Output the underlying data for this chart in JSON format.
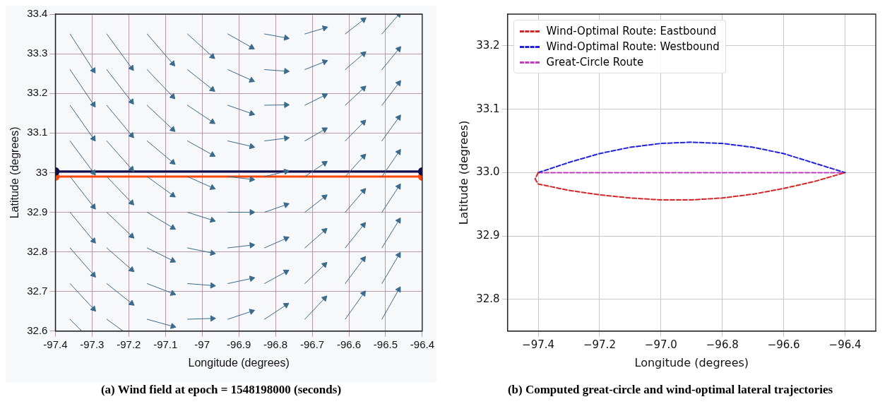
{
  "chart_data": [
    {
      "type": "line",
      "title": "(a) Wind field at epoch = 1548198000 (seconds)",
      "xlabel": "Longitude (degrees)",
      "ylabel": "Latitude (degrees)",
      "xlim": [
        -97.4,
        -96.4
      ],
      "ylim": [
        32.6,
        33.4
      ],
      "xticks": [
        -97.4,
        -97.3,
        -97.2,
        -97.1,
        -97,
        -96.9,
        -96.8,
        -96.7,
        -96.6,
        -96.5,
        -96.4
      ],
      "yticks": [
        32.6,
        32.7,
        32.8,
        32.9,
        33,
        33.1,
        33.2,
        33.3,
        33.4
      ],
      "grid": true,
      "series": [
        {
          "x": [
            -97.36,
            -97.296
          ],
          "values": [
            33.35,
            33.258
          ],
          "color": "#3a6a8c",
          "marker": "triangle"
        },
        {
          "x": [
            -97.36,
            -97.296
          ],
          "values": [
            33.26,
            33.172
          ],
          "color": "#3a6a8c",
          "marker": "triangle"
        },
        {
          "x": [
            -97.36,
            -97.296
          ],
          "values": [
            33.17,
            33.086
          ],
          "color": "#3a6a8c",
          "marker": "triangle"
        },
        {
          "x": [
            -97.36,
            -97.296
          ],
          "values": [
            33.08,
            33.0
          ],
          "color": "#3a6a8c",
          "marker": "triangle"
        },
        {
          "x": [
            -97.36,
            -97.296
          ],
          "values": [
            32.99,
            32.914
          ],
          "color": "#3a6a8c",
          "marker": "triangle"
        },
        {
          "x": [
            -97.36,
            -97.296
          ],
          "values": [
            32.9,
            32.828
          ],
          "color": "#3a6a8c",
          "marker": "triangle"
        },
        {
          "x": [
            -97.36,
            -97.296
          ],
          "values": [
            32.81,
            32.742
          ],
          "color": "#3a6a8c",
          "marker": "triangle"
        },
        {
          "x": [
            -97.36,
            -97.296
          ],
          "values": [
            32.72,
            32.656
          ],
          "color": "#3a6a8c",
          "marker": "triangle"
        },
        {
          "x": [
            -97.36,
            -97.328
          ],
          "values": [
            32.63,
            32.6
          ],
          "color": "#3a6a8c",
          "marker": "none"
        },
        {
          "x": [
            -97.26,
            -97.192
          ],
          "values": [
            33.35,
            33.264
          ],
          "color": "#3a6a8c",
          "marker": "triangle"
        },
        {
          "x": [
            -97.26,
            -97.192
          ],
          "values": [
            33.26,
            33.179
          ],
          "color": "#3a6a8c",
          "marker": "triangle"
        },
        {
          "x": [
            -97.26,
            -97.192
          ],
          "values": [
            33.17,
            33.094
          ],
          "color": "#3a6a8c",
          "marker": "triangle"
        },
        {
          "x": [
            -97.26,
            -97.192
          ],
          "values": [
            33.08,
            33.009
          ],
          "color": "#3a6a8c",
          "marker": "triangle"
        },
        {
          "x": [
            -97.26,
            -97.192
          ],
          "values": [
            32.99,
            32.924
          ],
          "color": "#3a6a8c",
          "marker": "triangle"
        },
        {
          "x": [
            -97.26,
            -97.192
          ],
          "values": [
            32.9,
            32.84
          ],
          "color": "#3a6a8c",
          "marker": "triangle"
        },
        {
          "x": [
            -97.26,
            -97.192
          ],
          "values": [
            32.81,
            32.755
          ],
          "color": "#3a6a8c",
          "marker": "triangle"
        },
        {
          "x": [
            -97.26,
            -97.192
          ],
          "values": [
            32.72,
            32.67
          ],
          "color": "#3a6a8c",
          "marker": "triangle"
        },
        {
          "x": [
            -97.26,
            -97.215
          ],
          "values": [
            32.63,
            32.6
          ],
          "color": "#3a6a8c",
          "marker": "none"
        },
        {
          "x": [
            -97.15,
            -97.08
          ],
          "values": [
            33.35,
            33.275
          ],
          "color": "#3a6a8c",
          "marker": "triangle"
        },
        {
          "x": [
            -97.15,
            -97.08
          ],
          "values": [
            33.26,
            33.192
          ],
          "color": "#3a6a8c",
          "marker": "triangle"
        },
        {
          "x": [
            -97.15,
            -97.08
          ],
          "values": [
            33.17,
            33.109
          ],
          "color": "#3a6a8c",
          "marker": "triangle"
        },
        {
          "x": [
            -97.15,
            -97.08
          ],
          "values": [
            33.08,
            33.026
          ],
          "color": "#3a6a8c",
          "marker": "triangle"
        },
        {
          "x": [
            -97.15,
            -97.08
          ],
          "values": [
            32.99,
            32.943
          ],
          "color": "#3a6a8c",
          "marker": "triangle"
        },
        {
          "x": [
            -97.15,
            -97.08
          ],
          "values": [
            32.9,
            32.861
          ],
          "color": "#3a6a8c",
          "marker": "triangle"
        },
        {
          "x": [
            -97.15,
            -97.08
          ],
          "values": [
            32.81,
            32.778
          ],
          "color": "#3a6a8c",
          "marker": "triangle"
        },
        {
          "x": [
            -97.15,
            -97.08
          ],
          "values": [
            32.72,
            32.695
          ],
          "color": "#3a6a8c",
          "marker": "triangle"
        },
        {
          "x": [
            -97.15,
            -97.08
          ],
          "values": [
            32.63,
            32.612
          ],
          "color": "#3a6a8c",
          "marker": "triangle"
        },
        {
          "x": [
            -97.04,
            -96.972
          ],
          "values": [
            33.35,
            33.293
          ],
          "color": "#3a6a8c",
          "marker": "triangle"
        },
        {
          "x": [
            -97.04,
            -96.972
          ],
          "values": [
            33.26,
            33.21
          ],
          "color": "#3a6a8c",
          "marker": "triangle"
        },
        {
          "x": [
            -97.04,
            -96.972
          ],
          "values": [
            33.17,
            33.128
          ],
          "color": "#3a6a8c",
          "marker": "triangle"
        },
        {
          "x": [
            -97.04,
            -96.972
          ],
          "values": [
            33.08,
            33.045
          ],
          "color": "#3a6a8c",
          "marker": "triangle"
        },
        {
          "x": [
            -97.04,
            -96.972
          ],
          "values": [
            32.99,
            32.962
          ],
          "color": "#3a6a8c",
          "marker": "triangle"
        },
        {
          "x": [
            -97.04,
            -96.972
          ],
          "values": [
            32.9,
            32.88
          ],
          "color": "#3a6a8c",
          "marker": "triangle"
        },
        {
          "x": [
            -97.04,
            -96.972
          ],
          "values": [
            32.81,
            32.797
          ],
          "color": "#3a6a8c",
          "marker": "triangle"
        },
        {
          "x": [
            -97.04,
            -96.972
          ],
          "values": [
            32.72,
            32.715
          ],
          "color": "#3a6a8c",
          "marker": "triangle"
        },
        {
          "x": [
            -97.04,
            -96.972
          ],
          "values": [
            32.63,
            32.632
          ],
          "color": "#3a6a8c",
          "marker": "triangle"
        },
        {
          "x": [
            -96.93,
            -96.865
          ],
          "values": [
            33.35,
            33.316
          ],
          "color": "#3a6a8c",
          "marker": "triangle"
        },
        {
          "x": [
            -96.93,
            -96.865
          ],
          "values": [
            33.26,
            33.233
          ],
          "color": "#3a6a8c",
          "marker": "triangle"
        },
        {
          "x": [
            -96.93,
            -96.865
          ],
          "values": [
            33.17,
            33.149
          ],
          "color": "#3a6a8c",
          "marker": "triangle"
        },
        {
          "x": [
            -96.93,
            -96.865
          ],
          "values": [
            33.08,
            33.066
          ],
          "color": "#3a6a8c",
          "marker": "triangle"
        },
        {
          "x": [
            -96.93,
            -96.865
          ],
          "values": [
            32.99,
            32.983
          ],
          "color": "#3a6a8c",
          "marker": "triangle"
        },
        {
          "x": [
            -96.93,
            -96.865
          ],
          "values": [
            32.9,
            32.9
          ],
          "color": "#3a6a8c",
          "marker": "triangle"
        },
        {
          "x": [
            -96.93,
            -96.865
          ],
          "values": [
            32.81,
            32.817
          ],
          "color": "#3a6a8c",
          "marker": "triangle"
        },
        {
          "x": [
            -96.93,
            -96.865
          ],
          "values": [
            32.72,
            32.733
          ],
          "color": "#3a6a8c",
          "marker": "triangle"
        },
        {
          "x": [
            -96.93,
            -96.865
          ],
          "values": [
            32.63,
            32.65
          ],
          "color": "#3a6a8c",
          "marker": "triangle"
        },
        {
          "x": [
            -96.83,
            -96.771
          ],
          "values": [
            33.35,
            33.34
          ],
          "color": "#3a6a8c",
          "marker": "triangle"
        },
        {
          "x": [
            -96.83,
            -96.771
          ],
          "values": [
            33.26,
            33.256
          ],
          "color": "#3a6a8c",
          "marker": "triangle"
        },
        {
          "x": [
            -96.83,
            -96.771
          ],
          "values": [
            33.17,
            33.171
          ],
          "color": "#3a6a8c",
          "marker": "triangle"
        },
        {
          "x": [
            -96.83,
            -96.771
          ],
          "values": [
            33.08,
            33.087
          ],
          "color": "#3a6a8c",
          "marker": "triangle"
        },
        {
          "x": [
            -96.83,
            -96.771
          ],
          "values": [
            32.99,
            33.003
          ],
          "color": "#3a6a8c",
          "marker": "triangle"
        },
        {
          "x": [
            -96.83,
            -96.771
          ],
          "values": [
            32.9,
            32.919
          ],
          "color": "#3a6a8c",
          "marker": "triangle"
        },
        {
          "x": [
            -96.83,
            -96.771
          ],
          "values": [
            32.81,
            32.834
          ],
          "color": "#3a6a8c",
          "marker": "triangle"
        },
        {
          "x": [
            -96.83,
            -96.771
          ],
          "values": [
            32.72,
            32.75
          ],
          "color": "#3a6a8c",
          "marker": "triangle"
        },
        {
          "x": [
            -96.83,
            -96.771
          ],
          "values": [
            32.63,
            32.666
          ],
          "color": "#3a6a8c",
          "marker": "triangle"
        },
        {
          "x": [
            -96.72,
            -96.666
          ],
          "values": [
            33.35,
            33.365
          ],
          "color": "#3a6a8c",
          "marker": "triangle"
        },
        {
          "x": [
            -96.72,
            -96.666
          ],
          "values": [
            33.26,
            33.28
          ],
          "color": "#3a6a8c",
          "marker": "triangle"
        },
        {
          "x": [
            -96.72,
            -96.666
          ],
          "values": [
            33.17,
            33.195
          ],
          "color": "#3a6a8c",
          "marker": "triangle"
        },
        {
          "x": [
            -96.72,
            -96.666
          ],
          "values": [
            33.08,
            33.109
          ],
          "color": "#3a6a8c",
          "marker": "triangle"
        },
        {
          "x": [
            -96.72,
            -96.666
          ],
          "values": [
            32.99,
            33.024
          ],
          "color": "#3a6a8c",
          "marker": "triangle"
        },
        {
          "x": [
            -96.72,
            -96.666
          ],
          "values": [
            32.9,
            32.939
          ],
          "color": "#3a6a8c",
          "marker": "triangle"
        },
        {
          "x": [
            -96.72,
            -96.666
          ],
          "values": [
            32.81,
            32.854
          ],
          "color": "#3a6a8c",
          "marker": "triangle"
        },
        {
          "x": [
            -96.72,
            -96.666
          ],
          "values": [
            32.72,
            32.768
          ],
          "color": "#3a6a8c",
          "marker": "triangle"
        },
        {
          "x": [
            -96.72,
            -96.666
          ],
          "values": [
            32.63,
            32.683
          ],
          "color": "#3a6a8c",
          "marker": "triangle"
        },
        {
          "x": [
            -96.61,
            -96.56
          ],
          "values": [
            33.35,
            33.386
          ],
          "color": "#3a6a8c",
          "marker": "triangle"
        },
        {
          "x": [
            -96.61,
            -96.56
          ],
          "values": [
            33.26,
            33.3
          ],
          "color": "#3a6a8c",
          "marker": "triangle"
        },
        {
          "x": [
            -96.61,
            -96.56
          ],
          "values": [
            33.17,
            33.213
          ],
          "color": "#3a6a8c",
          "marker": "triangle"
        },
        {
          "x": [
            -96.61,
            -96.56
          ],
          "values": [
            33.08,
            33.127
          ],
          "color": "#3a6a8c",
          "marker": "triangle"
        },
        {
          "x": [
            -96.61,
            -96.56
          ],
          "values": [
            32.99,
            33.041
          ],
          "color": "#3a6a8c",
          "marker": "triangle"
        },
        {
          "x": [
            -96.61,
            -96.56
          ],
          "values": [
            32.9,
            32.954
          ],
          "color": "#3a6a8c",
          "marker": "triangle"
        },
        {
          "x": [
            -96.61,
            -96.56
          ],
          "values": [
            32.81,
            32.868
          ],
          "color": "#3a6a8c",
          "marker": "triangle"
        },
        {
          "x": [
            -96.61,
            -96.56
          ],
          "values": [
            32.72,
            32.782
          ],
          "color": "#3a6a8c",
          "marker": "triangle"
        },
        {
          "x": [
            -96.61,
            -96.56
          ],
          "values": [
            32.63,
            32.695
          ],
          "color": "#3a6a8c",
          "marker": "triangle"
        },
        {
          "x": [
            -96.51,
            -96.464
          ],
          "values": [
            33.35,
            33.399
          ],
          "color": "#3a6a8c",
          "marker": "triangle"
        },
        {
          "x": [
            -96.51,
            -96.464
          ],
          "values": [
            33.26,
            33.312
          ],
          "color": "#3a6a8c",
          "marker": "triangle"
        },
        {
          "x": [
            -96.51,
            -96.464
          ],
          "values": [
            33.17,
            33.226
          ],
          "color": "#3a6a8c",
          "marker": "triangle"
        },
        {
          "x": [
            -96.51,
            -96.464
          ],
          "values": [
            33.08,
            33.139
          ],
          "color": "#3a6a8c",
          "marker": "triangle"
        },
        {
          "x": [
            -96.51,
            -96.464
          ],
          "values": [
            32.99,
            33.052
          ],
          "color": "#3a6a8c",
          "marker": "triangle"
        },
        {
          "x": [
            -96.51,
            -96.464
          ],
          "values": [
            32.9,
            32.965
          ],
          "color": "#3a6a8c",
          "marker": "triangle"
        },
        {
          "x": [
            -96.51,
            -96.464
          ],
          "values": [
            32.81,
            32.879
          ],
          "color": "#3a6a8c",
          "marker": "triangle"
        },
        {
          "x": [
            -96.51,
            -96.464
          ],
          "values": [
            32.72,
            32.792
          ],
          "color": "#3a6a8c",
          "marker": "triangle"
        },
        {
          "x": [
            -96.51,
            -96.464
          ],
          "values": [
            32.63,
            32.705
          ],
          "color": "#3a6a8c",
          "marker": "triangle"
        },
        {
          "x": [
            -97.4,
            -96.4
          ],
          "values": [
            33.003,
            33.003
          ],
          "color": "#0d0d4d",
          "marker": "circle"
        },
        {
          "x": [
            -97.4,
            -96.4
          ],
          "values": [
            32.99,
            32.99
          ],
          "color": "#ff4500",
          "marker": "circle"
        }
      ]
    },
    {
      "type": "line",
      "title": "(b) Computed great-circle and wind-optimal lateral trajectories",
      "xlabel": "Longitude (degrees)",
      "ylabel": "Latitude (degrees)",
      "xlim": [
        -97.5,
        -96.3
      ],
      "ylim": [
        32.75,
        33.25
      ],
      "xticks": [
        {
          "value": -97.4,
          "label": "−97.4"
        },
        {
          "value": -97.2,
          "label": "−97.2"
        },
        {
          "value": -97.0,
          "label": "−97.0"
        },
        {
          "value": -96.8,
          "label": "−96.8"
        },
        {
          "value": -96.6,
          "label": "−96.6"
        },
        {
          "value": -96.4,
          "label": "−96.4"
        }
      ],
      "yticks": [
        32.8,
        32.9,
        {
          "value": 33.0,
          "label": "33.0"
        },
        33.1,
        33.2
      ],
      "grid": true,
      "legend": "top left",
      "line_style": "dashed",
      "marker": "none",
      "series": [
        {
          "name": "Wind-Optimal Route: Eastbound",
          "color": "#d62728",
          "x": [
            -97.4,
            -97.41,
            -97.4,
            -97.3,
            -97.2,
            -97.1,
            -97.0,
            -96.9,
            -96.8,
            -96.7,
            -96.6,
            -96.5,
            -96.4
          ],
          "values": [
            33.0,
            32.99,
            32.982,
            32.972,
            32.965,
            32.96,
            32.957,
            32.957,
            32.96,
            32.966,
            32.975,
            32.986,
            33.0
          ]
        },
        {
          "name": "Wind-Optimal Route: Westbound",
          "color": "#2222dd",
          "x": [
            -97.4,
            -97.3,
            -97.2,
            -97.1,
            -97.0,
            -96.9,
            -96.8,
            -96.7,
            -96.6,
            -96.5,
            -96.4
          ],
          "values": [
            33.0,
            33.016,
            33.03,
            33.04,
            33.046,
            33.048,
            33.046,
            33.04,
            33.03,
            33.015,
            33.0
          ]
        },
        {
          "name": "Great-Circle Route",
          "color": "#bf40bf",
          "x": [
            -97.4,
            -96.4
          ],
          "values": [
            33.0,
            33.0
          ]
        }
      ]
    }
  ]
}
